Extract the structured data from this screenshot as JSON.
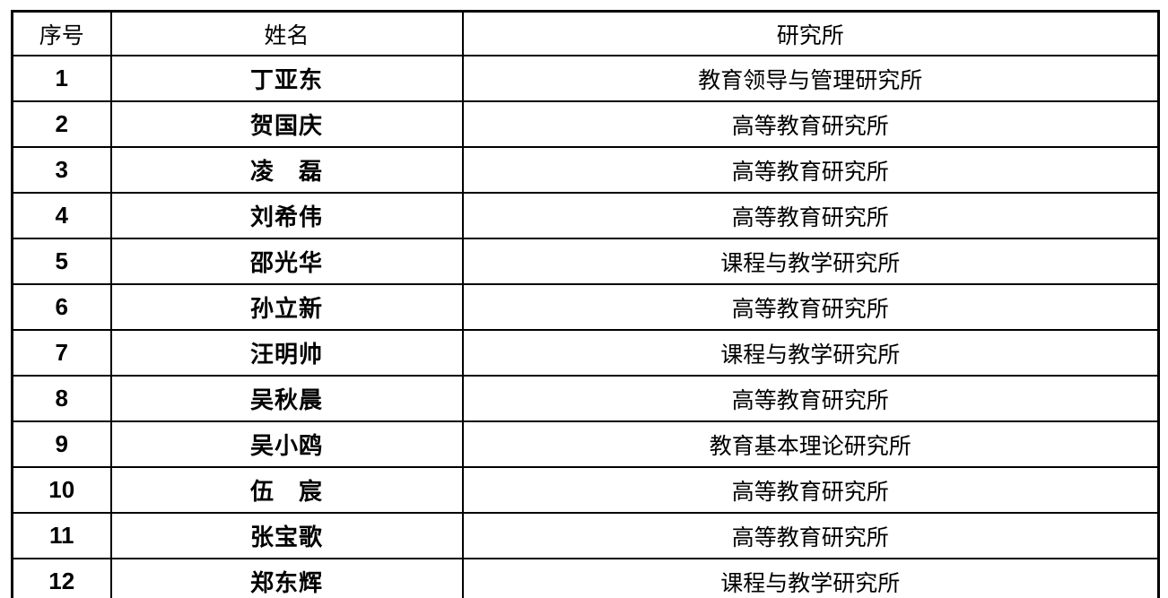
{
  "table": {
    "headers": {
      "no": "序号",
      "name": "姓名",
      "institute": "研究所"
    },
    "rows": [
      {
        "no": "1",
        "name": "丁亚东",
        "institute": "教育领导与管理研究所"
      },
      {
        "no": "2",
        "name": "贺国庆",
        "institute": "高等教育研究所"
      },
      {
        "no": "3",
        "name": "凌　磊",
        "institute": "高等教育研究所"
      },
      {
        "no": "4",
        "name": "刘希伟",
        "institute": "高等教育研究所"
      },
      {
        "no": "5",
        "name": "邵光华",
        "institute": "课程与教学研究所"
      },
      {
        "no": "6",
        "name": "孙立新",
        "institute": "高等教育研究所"
      },
      {
        "no": "7",
        "name": "汪明帅",
        "institute": "课程与教学研究所"
      },
      {
        "no": "8",
        "name": "吴秋晨",
        "institute": "高等教育研究所"
      },
      {
        "no": "9",
        "name": "吴小鸥",
        "institute": "教育基本理论研究所"
      },
      {
        "no": "10",
        "name": "伍　宸",
        "institute": "高等教育研究所"
      },
      {
        "no": "11",
        "name": "张宝歌",
        "institute": "高等教育研究所"
      },
      {
        "no": "12",
        "name": "郑东辉",
        "institute": "课程与教学研究所"
      }
    ],
    "colors": {
      "border": "#000000",
      "background": "#ffffff",
      "text": "#000000"
    }
  }
}
